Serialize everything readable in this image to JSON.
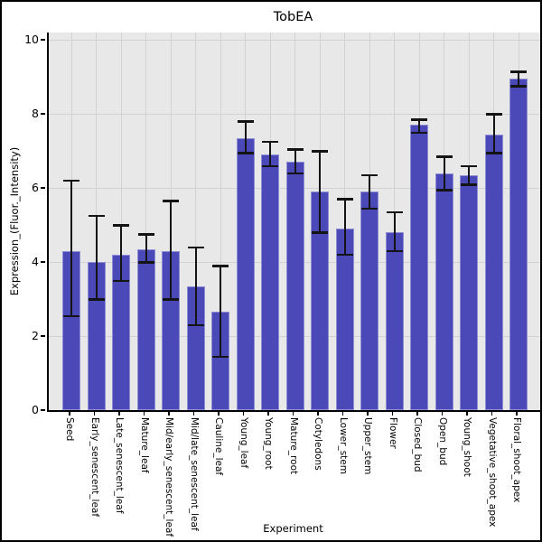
{
  "figure": {
    "background": "#ffffff",
    "frame_color": "#000000"
  },
  "chart_data": {
    "type": "bar",
    "title": "TobEA",
    "xlabel": "Experiment",
    "ylabel": "Expression_(Fluor._Intensity)",
    "ylim": [
      0,
      10
    ],
    "yticks": [
      0,
      2,
      4,
      6,
      8,
      10
    ],
    "grid": true,
    "legend": "none",
    "panel_bg": "#e8e8e8",
    "grid_color": "#d2d2d2",
    "bar_color": "#4a49b7",
    "bar_edge_color": "#8f8dd3",
    "error_color": "#141414",
    "categories": [
      "Seed",
      "Early_senescent_leaf",
      "Late_senescent_leaf",
      "Mature_leaf",
      "Mid/early_senescent_leaf",
      "Mid/late_senescent_leaf",
      "Cauline_leaf",
      "Young_leaf",
      "Young_root",
      "Mature_root",
      "Cotyledons",
      "Lower_stem",
      "Upper_stem",
      "Flower",
      "Closed_bud",
      "Open_bud",
      "Young_shoot",
      "Vegetative_shoot_apex",
      "Floral_shoot_apex"
    ],
    "values": [
      4.3,
      4.0,
      4.2,
      4.35,
      4.3,
      3.35,
      2.65,
      7.35,
      6.9,
      6.7,
      5.9,
      4.9,
      5.9,
      4.8,
      7.7,
      6.4,
      6.35,
      7.45,
      8.95
    ],
    "error_high": [
      6.2,
      5.25,
      5.0,
      4.75,
      5.65,
      4.4,
      3.9,
      7.8,
      7.25,
      7.05,
      7.0,
      5.7,
      6.35,
      5.35,
      7.85,
      6.85,
      6.6,
      8.0,
      9.15
    ],
    "error_low": [
      2.55,
      3.0,
      3.5,
      4.0,
      3.0,
      2.3,
      1.45,
      6.95,
      6.6,
      6.4,
      4.8,
      4.2,
      5.45,
      4.3,
      7.5,
      5.95,
      6.1,
      6.95,
      8.75
    ]
  }
}
